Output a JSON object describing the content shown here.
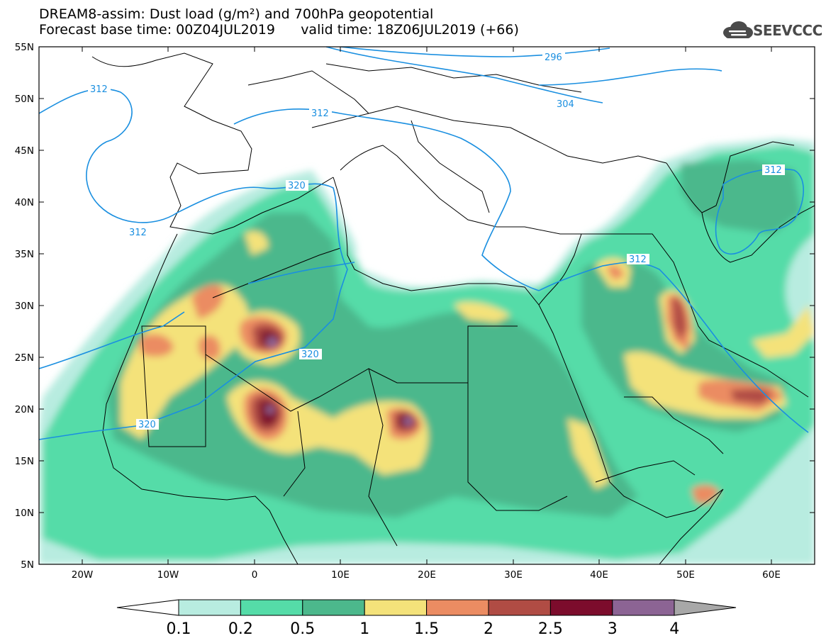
{
  "header": {
    "line1": "DREAM8-assim: Dust load (g/m²) and 700hPa geopotential",
    "line2": "Forecast base time: 00Z04JUL2019      valid time: 18Z06JUL2019 (+66)"
  },
  "logo": {
    "text": "SEEVCCC",
    "icon": "cloud-icon"
  },
  "map": {
    "lat_labels": [
      "55N",
      "50N",
      "45N",
      "40N",
      "35N",
      "30N",
      "25N",
      "20N",
      "15N",
      "10N",
      "5N"
    ],
    "lon_labels": [
      "20W",
      "10W",
      "0",
      "10E",
      "20E",
      "30E",
      "40E",
      "50E",
      "60E"
    ],
    "extent": {
      "lon_min": -25,
      "lon_max": 65,
      "lat_min": 5,
      "lat_max": 55
    },
    "contour_labels": [
      "296",
      "304",
      "312",
      "312",
      "312",
      "312",
      "320",
      "320",
      "320",
      "312"
    ],
    "contour_color": "#1a8fe0"
  },
  "colorbar": {
    "levels": [
      "0.1",
      "0.2",
      "0.5",
      "1",
      "1.5",
      "2",
      "2.5",
      "3",
      "4"
    ],
    "colors": [
      "#b8ece0",
      "#55dca8",
      "#4cb88c",
      "#f4e27a",
      "#eb8c62",
      "#b04c44",
      "#7c0c2c",
      "#8c6494",
      "#a8a8a8"
    ],
    "lower_arrow_color": "#ffffff"
  }
}
